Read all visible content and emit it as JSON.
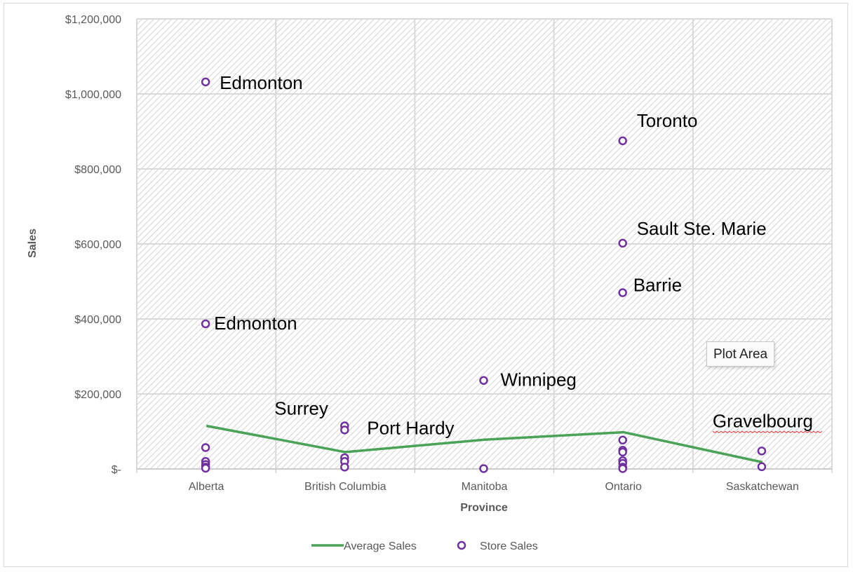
{
  "chart_data": {
    "type": "scatter",
    "xlabel": "Province",
    "ylabel": "Sales",
    "categories": [
      "Alberta",
      "British Columbia",
      "Manitoba",
      "Ontario",
      "Saskatchewan"
    ],
    "ylim": [
      0,
      1200000
    ],
    "y_ticks": [
      0,
      200000,
      400000,
      600000,
      800000,
      1000000,
      1200000
    ],
    "y_tick_labels": [
      "$-",
      "$200,000",
      "$400,000",
      "$600,000",
      "$800,000",
      "$1,000,000",
      "$1,200,000"
    ],
    "grid": true,
    "plot_background": "diagonal hatch",
    "legend_position": "bottom",
    "series": [
      {
        "name": "Average Sales",
        "type": "line",
        "color": "#4aa356",
        "values": [
          115000,
          45000,
          78000,
          98000,
          18000
        ]
      },
      {
        "name": "Store Sales",
        "type": "scatter",
        "color": "#7030a0",
        "marker": "open circle",
        "points": [
          {
            "category": "Alberta",
            "y": 1032000,
            "label": "Edmonton"
          },
          {
            "category": "Alberta",
            "y": 387000,
            "label": "Edmonton"
          },
          {
            "category": "Alberta",
            "y": 57000
          },
          {
            "category": "Alberta",
            "y": 20000
          },
          {
            "category": "Alberta",
            "y": 12000
          },
          {
            "category": "Alberta",
            "y": 5000
          },
          {
            "category": "Alberta",
            "y": 2000
          },
          {
            "category": "British Columbia",
            "y": 115000,
            "label": "Surrey"
          },
          {
            "category": "British Columbia",
            "y": 104000,
            "label": "Port Hardy"
          },
          {
            "category": "British Columbia",
            "y": 30000
          },
          {
            "category": "British Columbia",
            "y": 20000
          },
          {
            "category": "British Columbia",
            "y": 5000
          },
          {
            "category": "Manitoba",
            "y": 236000,
            "label": "Winnipeg"
          },
          {
            "category": "Manitoba",
            "y": 1000
          },
          {
            "category": "Ontario",
            "y": 875000,
            "label": "Toronto"
          },
          {
            "category": "Ontario",
            "y": 602000,
            "label": "Sault Ste. Marie"
          },
          {
            "category": "Ontario",
            "y": 470000,
            "label": "Barrie"
          },
          {
            "category": "Ontario",
            "y": 77000
          },
          {
            "category": "Ontario",
            "y": 50000
          },
          {
            "category": "Ontario",
            "y": 45000
          },
          {
            "category": "Ontario",
            "y": 22000
          },
          {
            "category": "Ontario",
            "y": 15000
          },
          {
            "category": "Ontario",
            "y": 5000
          },
          {
            "category": "Ontario",
            "y": 1000
          },
          {
            "category": "Saskatchewan",
            "y": 48000,
            "label": "Gravelbourg"
          },
          {
            "category": "Saskatchewan",
            "y": 6000
          }
        ]
      }
    ]
  },
  "tooltip": {
    "text": "Plot Area"
  },
  "legend": {
    "average_label": "Average Sales",
    "store_label": "Store Sales"
  }
}
